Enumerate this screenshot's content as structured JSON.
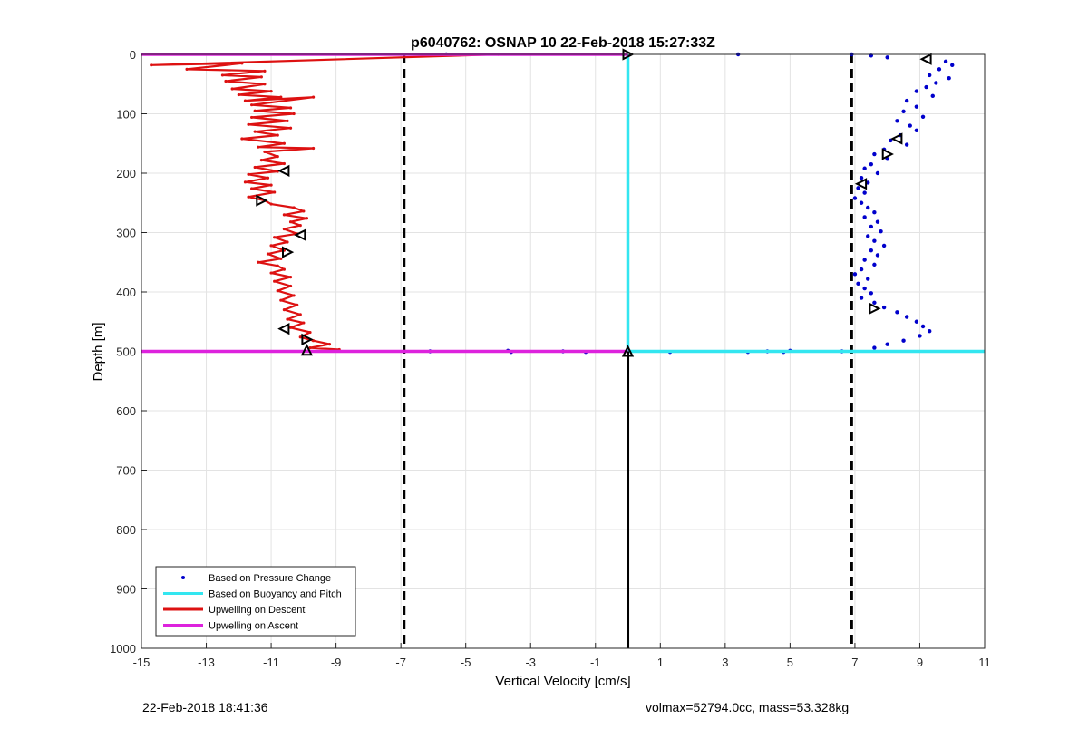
{
  "chart_data": {
    "type": "line",
    "title": "p6040762: OSNAP 10 22-Feb-2018 15:27:33Z",
    "xlabel": "Vertical Velocity [cm/s]",
    "ylabel": "Depth [m]",
    "xlim": [
      -15,
      11
    ],
    "ylim": [
      0,
      1000
    ],
    "y_reversed": true,
    "grid": true,
    "legend_placement": "bottom-left",
    "xticks": [
      "-15",
      "-13",
      "-11",
      "-9",
      "-7",
      "-5",
      "-3",
      "-1",
      "1",
      "3",
      "5",
      "7",
      "9",
      "11"
    ],
    "yticks": [
      "0",
      "100",
      "200",
      "300",
      "400",
      "500",
      "600",
      "700",
      "800",
      "900",
      "1000"
    ],
    "reference_lines": [
      {
        "x": -6.9,
        "style": "dashed",
        "color": "#000000"
      },
      {
        "x": 6.9,
        "style": "dashed",
        "color": "#000000"
      },
      {
        "x": 0,
        "y_range": [
          500,
          1000
        ],
        "style": "solid",
        "color": "#000000"
      }
    ],
    "series": [
      {
        "name": "Based on Pressure Change",
        "style": "dots",
        "color": "#0000cc",
        "points": [
          [
            6.9,
            0
          ],
          [
            7.5,
            2
          ],
          [
            3.4,
            0
          ],
          [
            -5.6,
            0
          ],
          [
            8.0,
            5
          ],
          [
            9.8,
            12
          ],
          [
            10.0,
            18
          ],
          [
            9.6,
            25
          ],
          [
            9.3,
            35
          ],
          [
            9.9,
            40
          ],
          [
            9.5,
            48
          ],
          [
            9.2,
            55
          ],
          [
            8.9,
            62
          ],
          [
            9.4,
            70
          ],
          [
            8.6,
            78
          ],
          [
            8.9,
            88
          ],
          [
            8.5,
            96
          ],
          [
            9.1,
            105
          ],
          [
            8.3,
            112
          ],
          [
            8.7,
            120
          ],
          [
            8.9,
            128
          ],
          [
            8.4,
            136
          ],
          [
            8.1,
            145
          ],
          [
            8.6,
            152
          ],
          [
            7.9,
            160
          ],
          [
            7.6,
            168
          ],
          [
            8.0,
            176
          ],
          [
            7.5,
            185
          ],
          [
            7.3,
            192
          ],
          [
            7.7,
            200
          ],
          [
            7.2,
            208
          ],
          [
            7.4,
            216
          ],
          [
            7.1,
            225
          ],
          [
            7.3,
            233
          ],
          [
            7.0,
            242
          ],
          [
            7.2,
            250
          ],
          [
            7.4,
            258
          ],
          [
            7.6,
            266
          ],
          [
            7.3,
            274
          ],
          [
            7.7,
            282
          ],
          [
            7.5,
            290
          ],
          [
            7.8,
            298
          ],
          [
            7.4,
            306
          ],
          [
            7.6,
            314
          ],
          [
            7.9,
            322
          ],
          [
            7.5,
            330
          ],
          [
            7.7,
            338
          ],
          [
            7.3,
            346
          ],
          [
            7.6,
            354
          ],
          [
            7.2,
            362
          ],
          [
            7.0,
            370
          ],
          [
            7.4,
            378
          ],
          [
            7.1,
            386
          ],
          [
            7.3,
            394
          ],
          [
            7.5,
            402
          ],
          [
            7.2,
            410
          ],
          [
            7.6,
            418
          ],
          [
            7.9,
            426
          ],
          [
            8.3,
            434
          ],
          [
            8.6,
            442
          ],
          [
            8.9,
            450
          ],
          [
            9.1,
            458
          ],
          [
            9.3,
            466
          ],
          [
            9.0,
            474
          ],
          [
            8.5,
            482
          ],
          [
            8.0,
            488
          ],
          [
            7.6,
            494
          ],
          [
            -1.3,
            501
          ],
          [
            -2.0,
            500
          ],
          [
            -3.6,
            501
          ],
          [
            -3.7,
            499
          ],
          [
            -6.1,
            500
          ],
          [
            1.3,
            501
          ],
          [
            3.7,
            501
          ],
          [
            4.3,
            500
          ],
          [
            4.8,
            501
          ],
          [
            5.0,
            499
          ],
          [
            6.6,
            500
          ]
        ]
      },
      {
        "name": "Based on Buoyancy and Pitch",
        "style": "thick-line",
        "color": "#33e6f0",
        "points": [
          [
            0,
            0
          ],
          [
            0,
            500
          ],
          [
            11,
            500
          ]
        ]
      },
      {
        "name": "Upwelling on Descent",
        "style": "line",
        "color": "#dd1111",
        "points": [
          [
            -4,
            0
          ],
          [
            -14.7,
            18
          ],
          [
            -11.9,
            15
          ],
          [
            -13.6,
            25
          ],
          [
            -11.2,
            28
          ],
          [
            -12.5,
            35
          ],
          [
            -11.3,
            38
          ],
          [
            -12.4,
            45
          ],
          [
            -11.2,
            50
          ],
          [
            -12.2,
            58
          ],
          [
            -11.0,
            62
          ],
          [
            -12.0,
            68
          ],
          [
            -10.7,
            72
          ],
          [
            -11.8,
            78
          ],
          [
            -9.7,
            72
          ],
          [
            -11.6,
            85
          ],
          [
            -10.4,
            90
          ],
          [
            -11.5,
            95
          ],
          [
            -10.3,
            100
          ],
          [
            -11.6,
            106
          ],
          [
            -10.5,
            112
          ],
          [
            -11.7,
            118
          ],
          [
            -10.4,
            124
          ],
          [
            -11.5,
            130
          ],
          [
            -10.8,
            136
          ],
          [
            -11.9,
            142
          ],
          [
            -10.6,
            150
          ],
          [
            -11.4,
            156
          ],
          [
            -9.7,
            158
          ],
          [
            -11.2,
            164
          ],
          [
            -10.8,
            172
          ],
          [
            -11.3,
            178
          ],
          [
            -10.6,
            184
          ],
          [
            -11.5,
            190
          ],
          [
            -10.8,
            197
          ],
          [
            -11.7,
            202
          ],
          [
            -11.1,
            208
          ],
          [
            -11.8,
            215
          ],
          [
            -11.0,
            220
          ],
          [
            -11.6,
            226
          ],
          [
            -10.9,
            232
          ],
          [
            -11.7,
            240
          ],
          [
            -11.2,
            246
          ],
          [
            -11.0,
            252
          ],
          [
            -10.3,
            258
          ],
          [
            -10.0,
            264
          ],
          [
            -10.6,
            270
          ],
          [
            -9.9,
            276
          ],
          [
            -10.4,
            282
          ],
          [
            -10.1,
            288
          ],
          [
            -10.6,
            294
          ],
          [
            -10.2,
            302
          ],
          [
            -10.9,
            308
          ],
          [
            -10.5,
            316
          ],
          [
            -11.0,
            322
          ],
          [
            -10.6,
            330
          ],
          [
            -11.1,
            336
          ],
          [
            -10.7,
            344
          ],
          [
            -11.4,
            350
          ],
          [
            -10.8,
            356
          ],
          [
            -10.6,
            362
          ],
          [
            -11.0,
            368
          ],
          [
            -10.4,
            375
          ],
          [
            -10.9,
            382
          ],
          [
            -10.4,
            390
          ],
          [
            -10.8,
            398
          ],
          [
            -10.3,
            406
          ],
          [
            -10.7,
            414
          ],
          [
            -10.2,
            422
          ],
          [
            -10.6,
            430
          ],
          [
            -10.1,
            438
          ],
          [
            -10.5,
            446
          ],
          [
            -10.0,
            452
          ],
          [
            -10.4,
            460
          ],
          [
            -9.8,
            468
          ],
          [
            -10.1,
            476
          ],
          [
            -9.7,
            482
          ],
          [
            -9.2,
            488
          ],
          [
            -9.8,
            494
          ],
          [
            -8.9,
            497
          ]
        ]
      },
      {
        "name": "Upwelling on Ascent",
        "style": "thick-line",
        "color": "#dd22dd",
        "points": [
          [
            -15,
            0
          ],
          [
            0,
            0
          ]
        ],
        "extra_segments": [
          [
            [
              -15,
              500
            ],
            [
              0,
              500
            ]
          ]
        ]
      }
    ],
    "markers": [
      {
        "x": 0,
        "y": 0,
        "shape": "right-triangle",
        "color": "#000000"
      },
      {
        "x": -10.6,
        "y": 196,
        "shape": "left-triangle",
        "color": "#000000"
      },
      {
        "x": -11.3,
        "y": 246,
        "shape": "right-triangle",
        "color": "#000000"
      },
      {
        "x": -10.1,
        "y": 304,
        "shape": "left-triangle",
        "color": "#000000"
      },
      {
        "x": -10.5,
        "y": 333,
        "shape": "right-triangle",
        "color": "#000000"
      },
      {
        "x": -10.6,
        "y": 462,
        "shape": "left-triangle",
        "color": "#000000"
      },
      {
        "x": -9.9,
        "y": 480,
        "shape": "right-triangle",
        "color": "#000000"
      },
      {
        "x": -9.9,
        "y": 498,
        "shape": "up-triangle",
        "color": "#000000"
      },
      {
        "x": 0,
        "y": 500,
        "shape": "up-triangle",
        "color": "#000000"
      },
      {
        "x": 9.2,
        "y": 8,
        "shape": "left-triangle",
        "color": "#000000"
      },
      {
        "x": 8.3,
        "y": 142,
        "shape": "left-triangle",
        "color": "#000000"
      },
      {
        "x": 8.0,
        "y": 168,
        "shape": "right-triangle",
        "color": "#000000"
      },
      {
        "x": 7.2,
        "y": 218,
        "shape": "left-triangle",
        "color": "#000000"
      },
      {
        "x": 7.6,
        "y": 428,
        "shape": "right-triangle",
        "color": "#000000"
      }
    ]
  },
  "footer": {
    "left": "22-Feb-2018 18:41:36",
    "right": "volmax=52794.0cc, mass=53.328kg"
  }
}
